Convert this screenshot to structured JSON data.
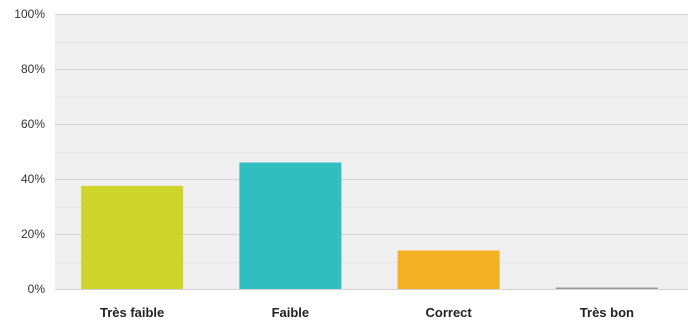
{
  "chart_data": {
    "type": "bar",
    "categories": [
      "Très faible",
      "Faible",
      "Correct",
      "Très bon"
    ],
    "values": [
      37.5,
      46.0,
      14.0,
      0.5
    ],
    "ylim": [
      0,
      100
    ],
    "yticks": [
      "0%",
      "20%",
      "40%",
      "60%",
      "80%",
      "100%"
    ],
    "grid": true,
    "legend": "none",
    "colors": [
      "#cfd42a",
      "#31bec0",
      "#f4b023",
      "#9a9a9a"
    ]
  }
}
